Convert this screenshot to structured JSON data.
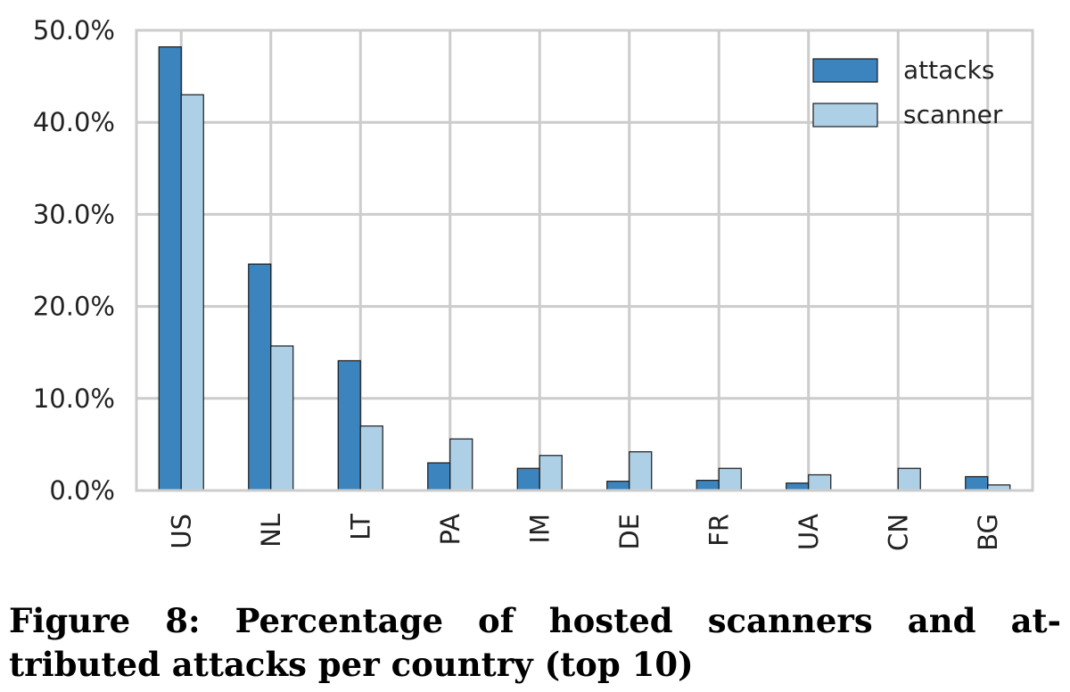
{
  "chart_data": {
    "type": "bar",
    "categories": [
      "US",
      "NL",
      "LT",
      "PA",
      "IM",
      "DE",
      "FR",
      "UA",
      "CN",
      "BG"
    ],
    "series": [
      {
        "name": "attacks",
        "values": [
          48.2,
          24.6,
          14.1,
          3.0,
          2.4,
          1.0,
          1.1,
          0.8,
          0.0,
          1.5
        ],
        "color": "#3c84be"
      },
      {
        "name": "scanner",
        "values": [
          43.0,
          15.7,
          7.0,
          5.6,
          3.8,
          4.2,
          2.4,
          1.7,
          2.4,
          0.6
        ],
        "color": "#aed0e6"
      }
    ],
    "ylim": [
      0,
      50
    ],
    "yticks": [
      0,
      10,
      20,
      30,
      40,
      50
    ],
    "ytick_labels": [
      "0.0%",
      "10.0%",
      "20.0%",
      "30.0%",
      "40.0%",
      "50.0%"
    ],
    "grid": true,
    "legend_position": "top-right",
    "title": "",
    "xlabel": "",
    "ylabel": ""
  },
  "caption": {
    "line1": "Figure 8:  Percentage of hosted scanners and at-",
    "line2": "tributed attacks per country (top 10)"
  }
}
